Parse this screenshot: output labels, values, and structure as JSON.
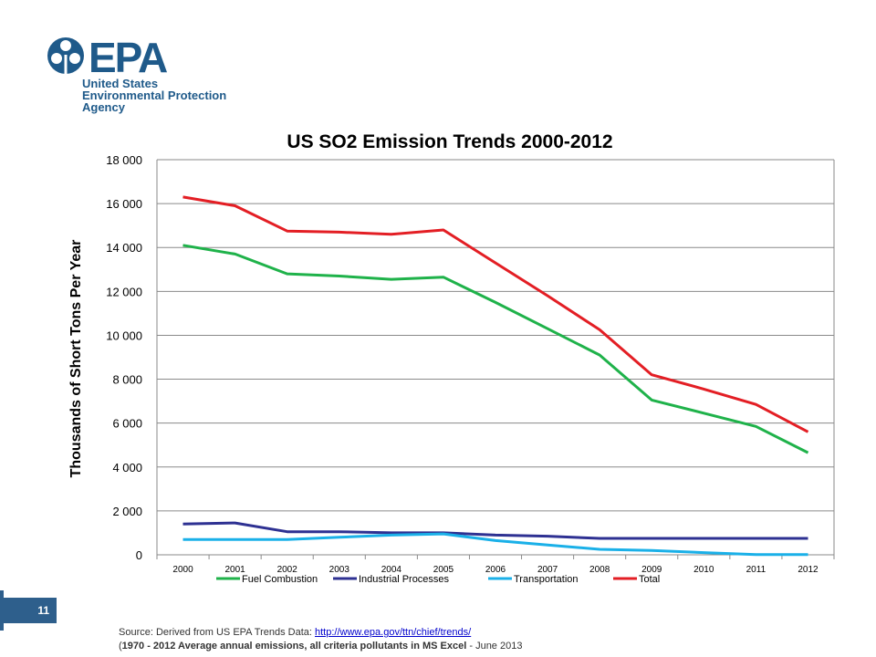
{
  "logo": {
    "wordmark": "EPA",
    "line1": "United States",
    "line2": "Environmental Protection",
    "line3": "Agency"
  },
  "colors": {
    "logo_blue": "#1f5a8a",
    "page_box": "#2e5f8c",
    "link": "#0000cc"
  },
  "page_number": "11",
  "source": {
    "prefix": "Source: Derived from US EPA Trends Data: ",
    "link_text": "http://www.epa.gov/ttn/chief/trends/",
    "footnote_open": "(",
    "footnote_bold": "1970 - 2012 Average annual emissions, all criteria pollutants in MS Excel",
    "footnote_tail": " - June 2013"
  },
  "chart_data": {
    "type": "line",
    "title": "US SO2 Emission Trends 2000-2012",
    "xlabel": "",
    "ylabel": "Thousands of Short Tons Per Year",
    "ylim": [
      0,
      18000
    ],
    "y_ticks": [
      0,
      2000,
      4000,
      6000,
      8000,
      10000,
      12000,
      14000,
      16000,
      18000
    ],
    "y_tick_labels": [
      "0",
      "2 000",
      "4 000",
      "6 000",
      "8 000",
      "10 000",
      "12 000",
      "14 000",
      "16 000",
      "18 000"
    ],
    "categories": [
      "2000",
      "2001",
      "2002",
      "2003",
      "2004",
      "2005",
      "2006",
      "2007",
      "2008",
      "2009",
      "2010",
      "2011",
      "2012"
    ],
    "grid": true,
    "legend_position": "bottom",
    "series": [
      {
        "name": "Fuel Combustion",
        "color": "#1fb24a",
        "values": [
          14100,
          13700,
          12800,
          12700,
          12550,
          12650,
          11500,
          10300,
          9100,
          7050,
          6450,
          5850,
          4650
        ]
      },
      {
        "name": "Industrial Processes",
        "color": "#2e3192",
        "values": [
          1400,
          1450,
          1050,
          1050,
          1000,
          1000,
          900,
          850,
          750,
          750,
          750,
          750,
          750
        ]
      },
      {
        "name": "Transportation",
        "color": "#1ab0e8",
        "values": [
          700,
          700,
          700,
          800,
          900,
          950,
          650,
          450,
          250,
          200,
          100,
          10,
          10
        ]
      },
      {
        "name": "Total",
        "color": "#e31e24",
        "values": [
          16300,
          15900,
          14750,
          14700,
          14600,
          14800,
          13300,
          11800,
          10250,
          8200,
          7550,
          6850,
          5600
        ]
      }
    ]
  }
}
